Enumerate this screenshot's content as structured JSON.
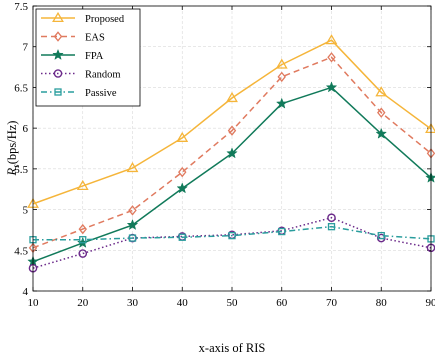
{
  "chart_data": {
    "type": "line",
    "xlabel": "x-axis of RIS",
    "ylabel": "R_s (bps/Hz)",
    "ylabel_main": "R",
    "ylabel_sub": "s",
    "ylabel_unit": "(bps/Hz)",
    "x": [
      10,
      20,
      30,
      40,
      50,
      60,
      70,
      80,
      90
    ],
    "xlim": [
      10,
      90
    ],
    "ylim": [
      4,
      7.5
    ],
    "x_ticks": [
      "10",
      "20",
      "30",
      "40",
      "50",
      "60",
      "70",
      "80",
      "90"
    ],
    "y_ticks": [
      "4",
      "4.5",
      "5",
      "5.5",
      "6",
      "6.5",
      "7",
      "7.5"
    ],
    "grid": true,
    "legend_position": "top-left",
    "series": [
      {
        "name": "Proposed",
        "color": "#F5B53A",
        "dash": "solid",
        "marker": "triangle",
        "values": [
          5.07,
          5.29,
          5.51,
          5.88,
          6.37,
          6.78,
          7.08,
          6.44,
          5.99
        ]
      },
      {
        "name": "EAS",
        "color": "#E07A5F",
        "dash": "dashed",
        "marker": "diamond",
        "values": [
          4.53,
          4.76,
          4.99,
          5.46,
          5.97,
          6.63,
          6.87,
          6.19,
          5.69
        ]
      },
      {
        "name": "FPA",
        "color": "#117A5A",
        "dash": "solid",
        "marker": "star",
        "values": [
          4.36,
          4.59,
          4.81,
          5.26,
          5.69,
          6.3,
          6.5,
          5.93,
          5.39
        ]
      },
      {
        "name": "Random",
        "color": "#6B2A8A",
        "dash": "dotted",
        "marker": "circle",
        "values": [
          4.28,
          4.46,
          4.65,
          4.67,
          4.69,
          4.74,
          4.9,
          4.65,
          4.53
        ]
      },
      {
        "name": "Passive",
        "color": "#2A9D9D",
        "dash": "dashdot",
        "marker": "square",
        "values": [
          4.63,
          4.63,
          4.65,
          4.66,
          4.68,
          4.73,
          4.79,
          4.68,
          4.64
        ]
      }
    ]
  }
}
